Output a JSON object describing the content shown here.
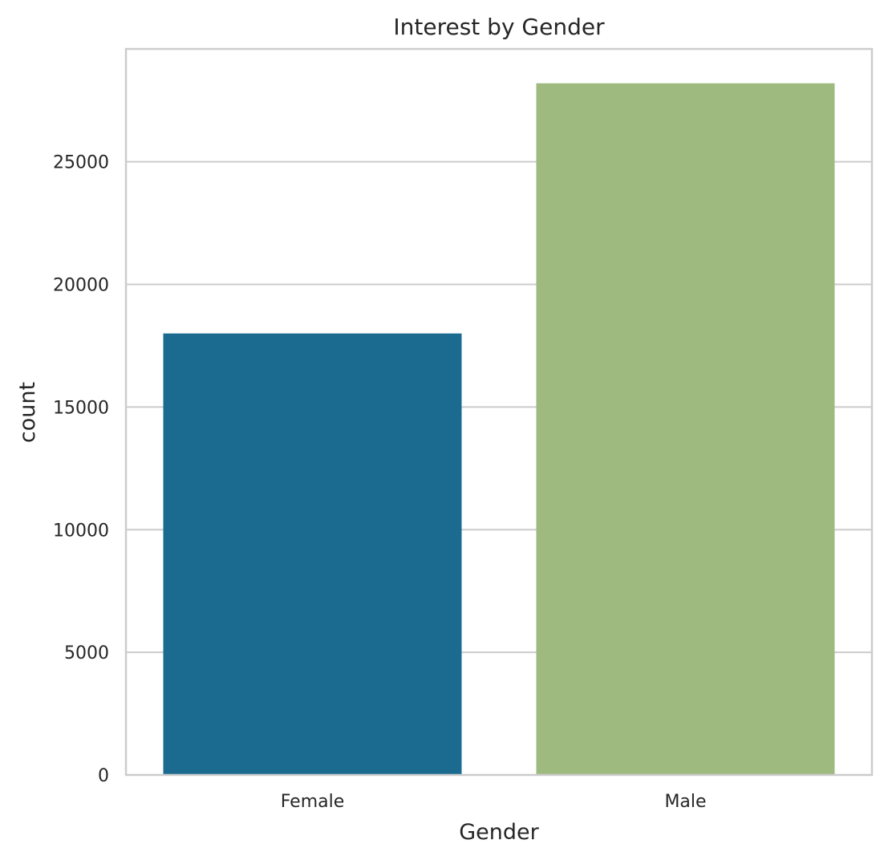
{
  "chart_data": {
    "type": "bar",
    "title": "Interest by Gender",
    "xlabel": "Gender",
    "ylabel": "count",
    "categories": [
      "Female",
      "Male"
    ],
    "values": [
      18000,
      28200
    ],
    "colors": [
      "#1a6b8f",
      "#9fba7f"
    ],
    "ylim": [
      0,
      29600
    ],
    "yticks": [
      0,
      5000,
      10000,
      15000,
      20000,
      25000
    ],
    "ytick_labels": [
      "0",
      "5000",
      "10000",
      "15000",
      "20000",
      "25000"
    ],
    "grid": "y",
    "legend": "none"
  }
}
